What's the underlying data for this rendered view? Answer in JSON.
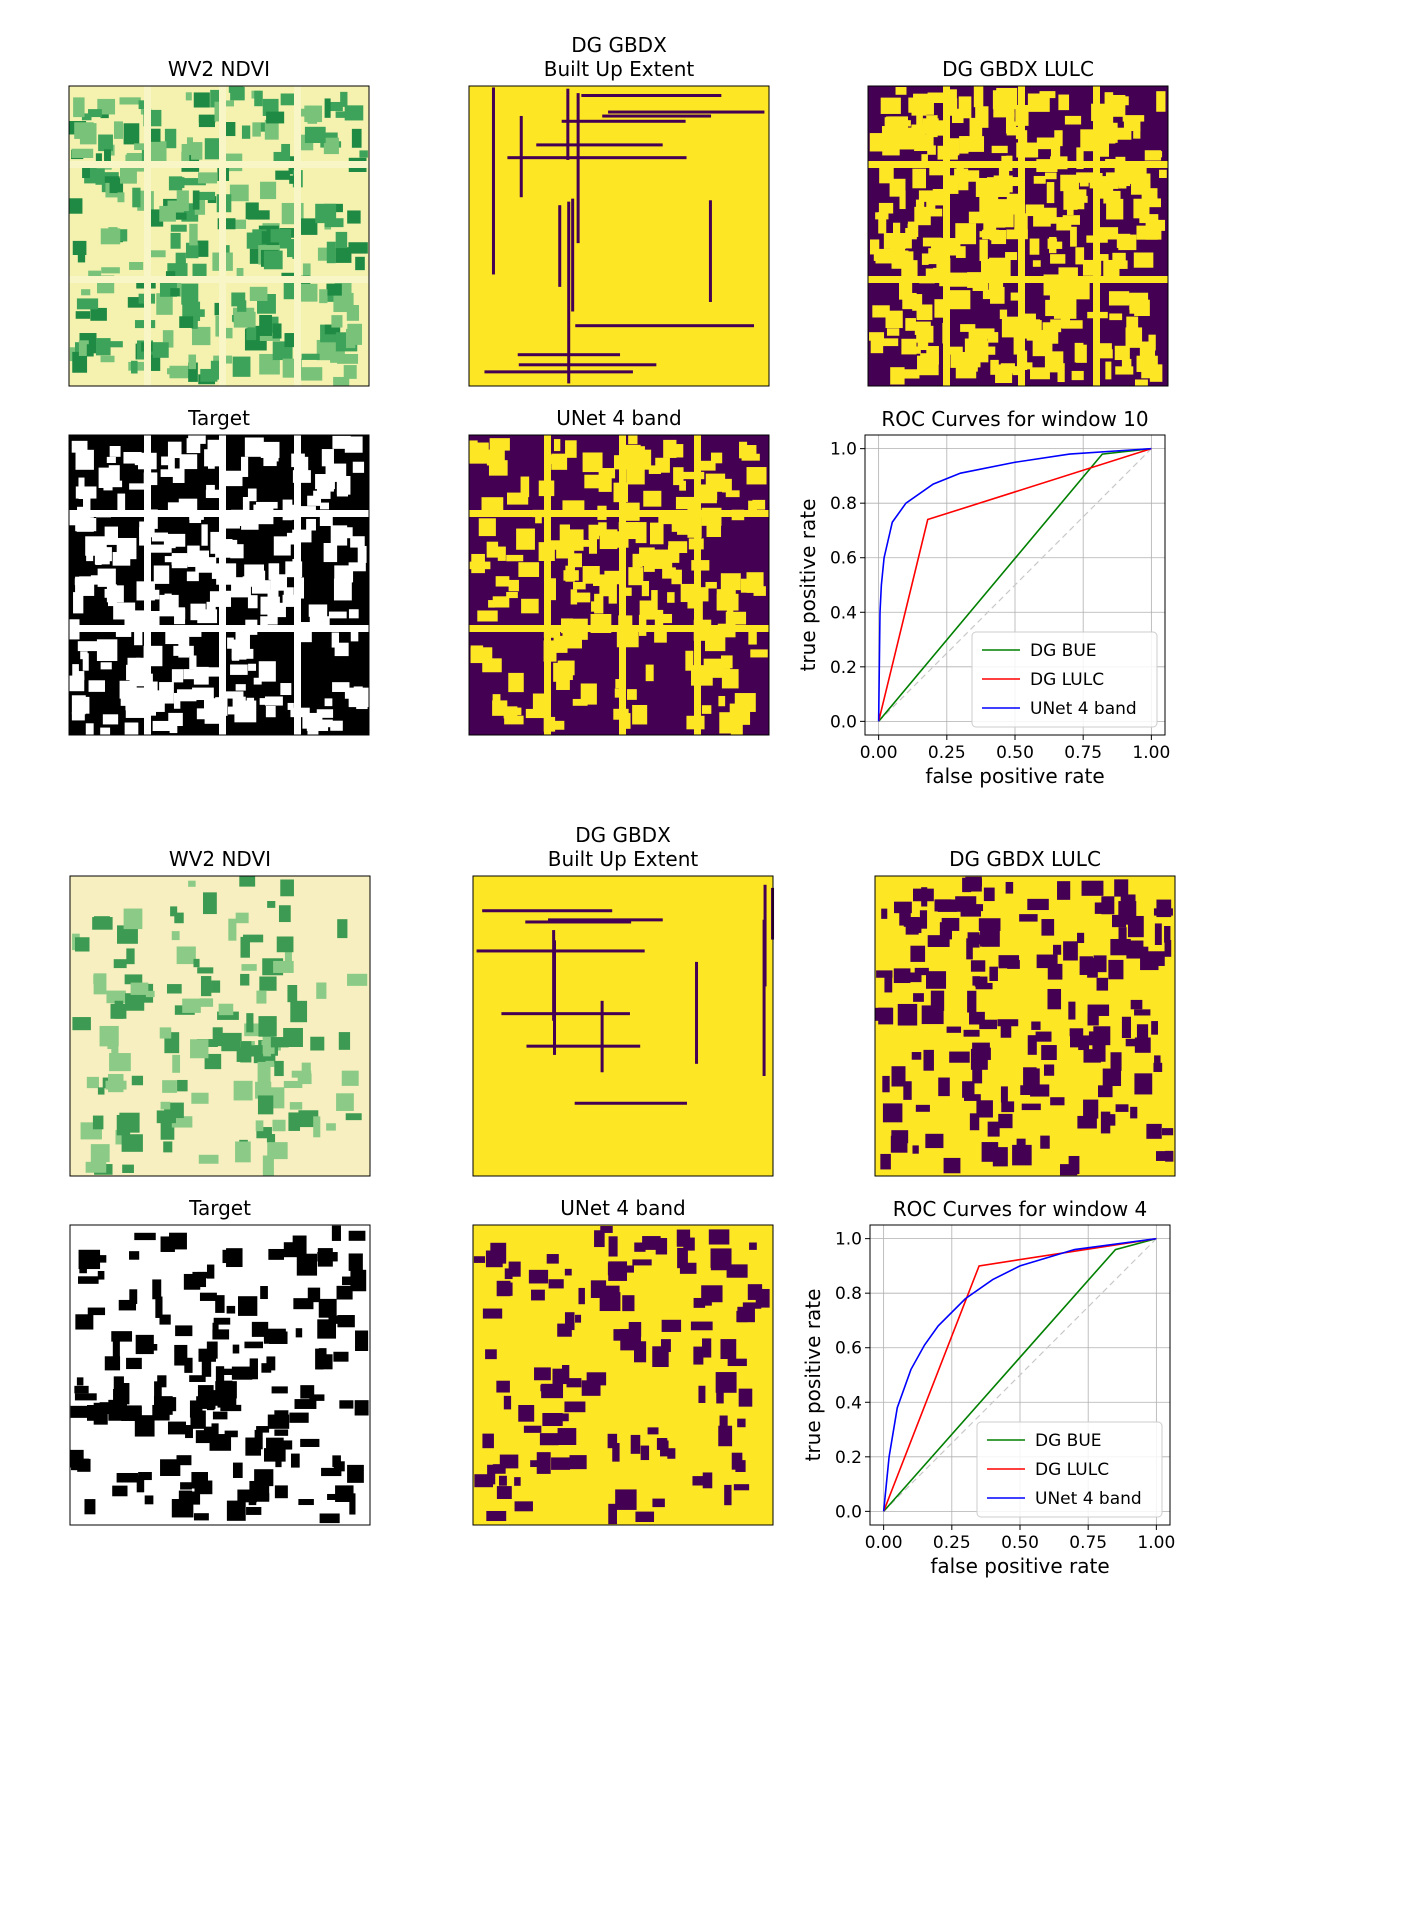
{
  "panels": [
    {
      "title": "WV2 NDVI",
      "style": "ndvi"
    },
    {
      "title": "DG GBDX\nBuilt Up Extent",
      "style": "bue"
    },
    {
      "title": "DG GBDX LULC",
      "style": "lulc"
    },
    {
      "title": "Target",
      "style": "target"
    },
    {
      "title": "UNet 4 band",
      "style": "unet"
    },
    {
      "title": "WV2 NDVI",
      "style": "ndvi2"
    },
    {
      "title": "DG GBDX\nBuilt Up Extent",
      "style": "bue2"
    },
    {
      "title": "DG GBDX LULC",
      "style": "lulc2"
    },
    {
      "title": "Target",
      "style": "target2"
    },
    {
      "title": "UNet 4 band",
      "style": "unet2"
    }
  ],
  "chart_data": [
    {
      "type": "line",
      "title": "ROC Curves for window 10",
      "xlabel": "false positive rate",
      "ylabel": "true positive rate",
      "xlim": [
        -0.05,
        1.05
      ],
      "ylim": [
        -0.05,
        1.05
      ],
      "xticks": [
        {
          "value": 0,
          "label": "0.00"
        },
        {
          "value": 0.25,
          "label": "0.25"
        },
        {
          "value": 0.5,
          "label": "0.50"
        },
        {
          "value": 0.75,
          "label": "0.75"
        },
        {
          "value": 1,
          "label": "1.00"
        }
      ],
      "yticks": [
        {
          "value": 0,
          "label": "0.0"
        },
        {
          "value": 0.2,
          "label": "0.2"
        },
        {
          "value": 0.4,
          "label": "0.4"
        },
        {
          "value": 0.6,
          "label": "0.6"
        },
        {
          "value": 0.8,
          "label": "0.8"
        },
        {
          "value": 1,
          "label": "1.0"
        }
      ],
      "grid": true,
      "legend": "lower right",
      "series": [
        {
          "name": "DG BUE",
          "color": "#008000",
          "x": [
            0,
            0.82,
            1
          ],
          "values": [
            0,
            0.98,
            1
          ]
        },
        {
          "name": "DG LULC",
          "color": "#ff0000",
          "x": [
            0,
            0.18,
            1
          ],
          "values": [
            0,
            0.74,
            1
          ]
        },
        {
          "name": "UNet 4 band",
          "color": "#0000ff",
          "x": [
            0,
            0.005,
            0.01,
            0.02,
            0.05,
            0.1,
            0.2,
            0.3,
            0.5,
            0.7,
            1
          ],
          "values": [
            0,
            0.4,
            0.5,
            0.6,
            0.73,
            0.8,
            0.87,
            0.91,
            0.95,
            0.98,
            1
          ]
        }
      ]
    },
    {
      "type": "line",
      "title": "ROC Curves for window 4",
      "xlabel": "false positive rate",
      "ylabel": "true positive rate",
      "xlim": [
        -0.05,
        1.05
      ],
      "ylim": [
        -0.05,
        1.05
      ],
      "xticks": [
        {
          "value": 0,
          "label": "0.00"
        },
        {
          "value": 0.25,
          "label": "0.25"
        },
        {
          "value": 0.5,
          "label": "0.50"
        },
        {
          "value": 0.75,
          "label": "0.75"
        },
        {
          "value": 1,
          "label": "1.00"
        }
      ],
      "yticks": [
        {
          "value": 0,
          "label": "0.0"
        },
        {
          "value": 0.2,
          "label": "0.2"
        },
        {
          "value": 0.4,
          "label": "0.4"
        },
        {
          "value": 0.6,
          "label": "0.6"
        },
        {
          "value": 0.8,
          "label": "0.8"
        },
        {
          "value": 1,
          "label": "1.0"
        }
      ],
      "grid": true,
      "legend": "lower right",
      "series": [
        {
          "name": "DG BUE",
          "color": "#008000",
          "x": [
            0,
            0.85,
            1
          ],
          "values": [
            0,
            0.96,
            1
          ]
        },
        {
          "name": "DG LULC",
          "color": "#ff0000",
          "x": [
            0,
            0.35,
            1
          ],
          "values": [
            0,
            0.9,
            1
          ]
        },
        {
          "name": "UNet 4 band",
          "color": "#0000ff",
          "x": [
            0,
            0.02,
            0.05,
            0.1,
            0.15,
            0.2,
            0.3,
            0.4,
            0.5,
            0.7,
            1
          ],
          "values": [
            0,
            0.2,
            0.38,
            0.52,
            0.61,
            0.68,
            0.78,
            0.85,
            0.9,
            0.96,
            1
          ]
        }
      ]
    }
  ]
}
